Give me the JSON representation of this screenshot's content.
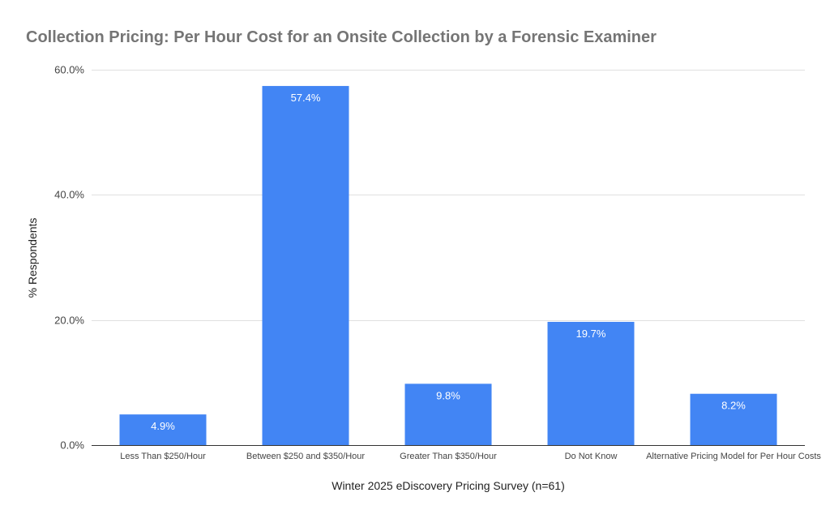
{
  "chart_data": {
    "type": "bar",
    "title": "Collection Pricing: Per Hour Cost for an Onsite Collection by a Forensic Examiner",
    "xlabel": "Winter 2025 eDiscovery Pricing Survey (n=61)",
    "ylabel": "% Respondents",
    "categories": [
      "Less Than $250/Hour",
      "Between $250 and $350/Hour",
      "Greater Than $350/Hour",
      "Do Not Know",
      "Alternative Pricing Model for Per Hour Costs"
    ],
    "values": [
      4.9,
      57.4,
      9.8,
      19.7,
      8.2
    ],
    "value_labels": [
      "4.9%",
      "57.4%",
      "9.8%",
      "19.7%",
      "8.2%"
    ],
    "ylim": [
      0,
      60
    ],
    "yticks": [
      0,
      20,
      40,
      60
    ],
    "ytick_labels": [
      "0.0%",
      "20.0%",
      "40.0%",
      "60.0%"
    ],
    "grid": true,
    "legend": "none",
    "bar_color": "#4285f4",
    "title_color": "#757575"
  }
}
